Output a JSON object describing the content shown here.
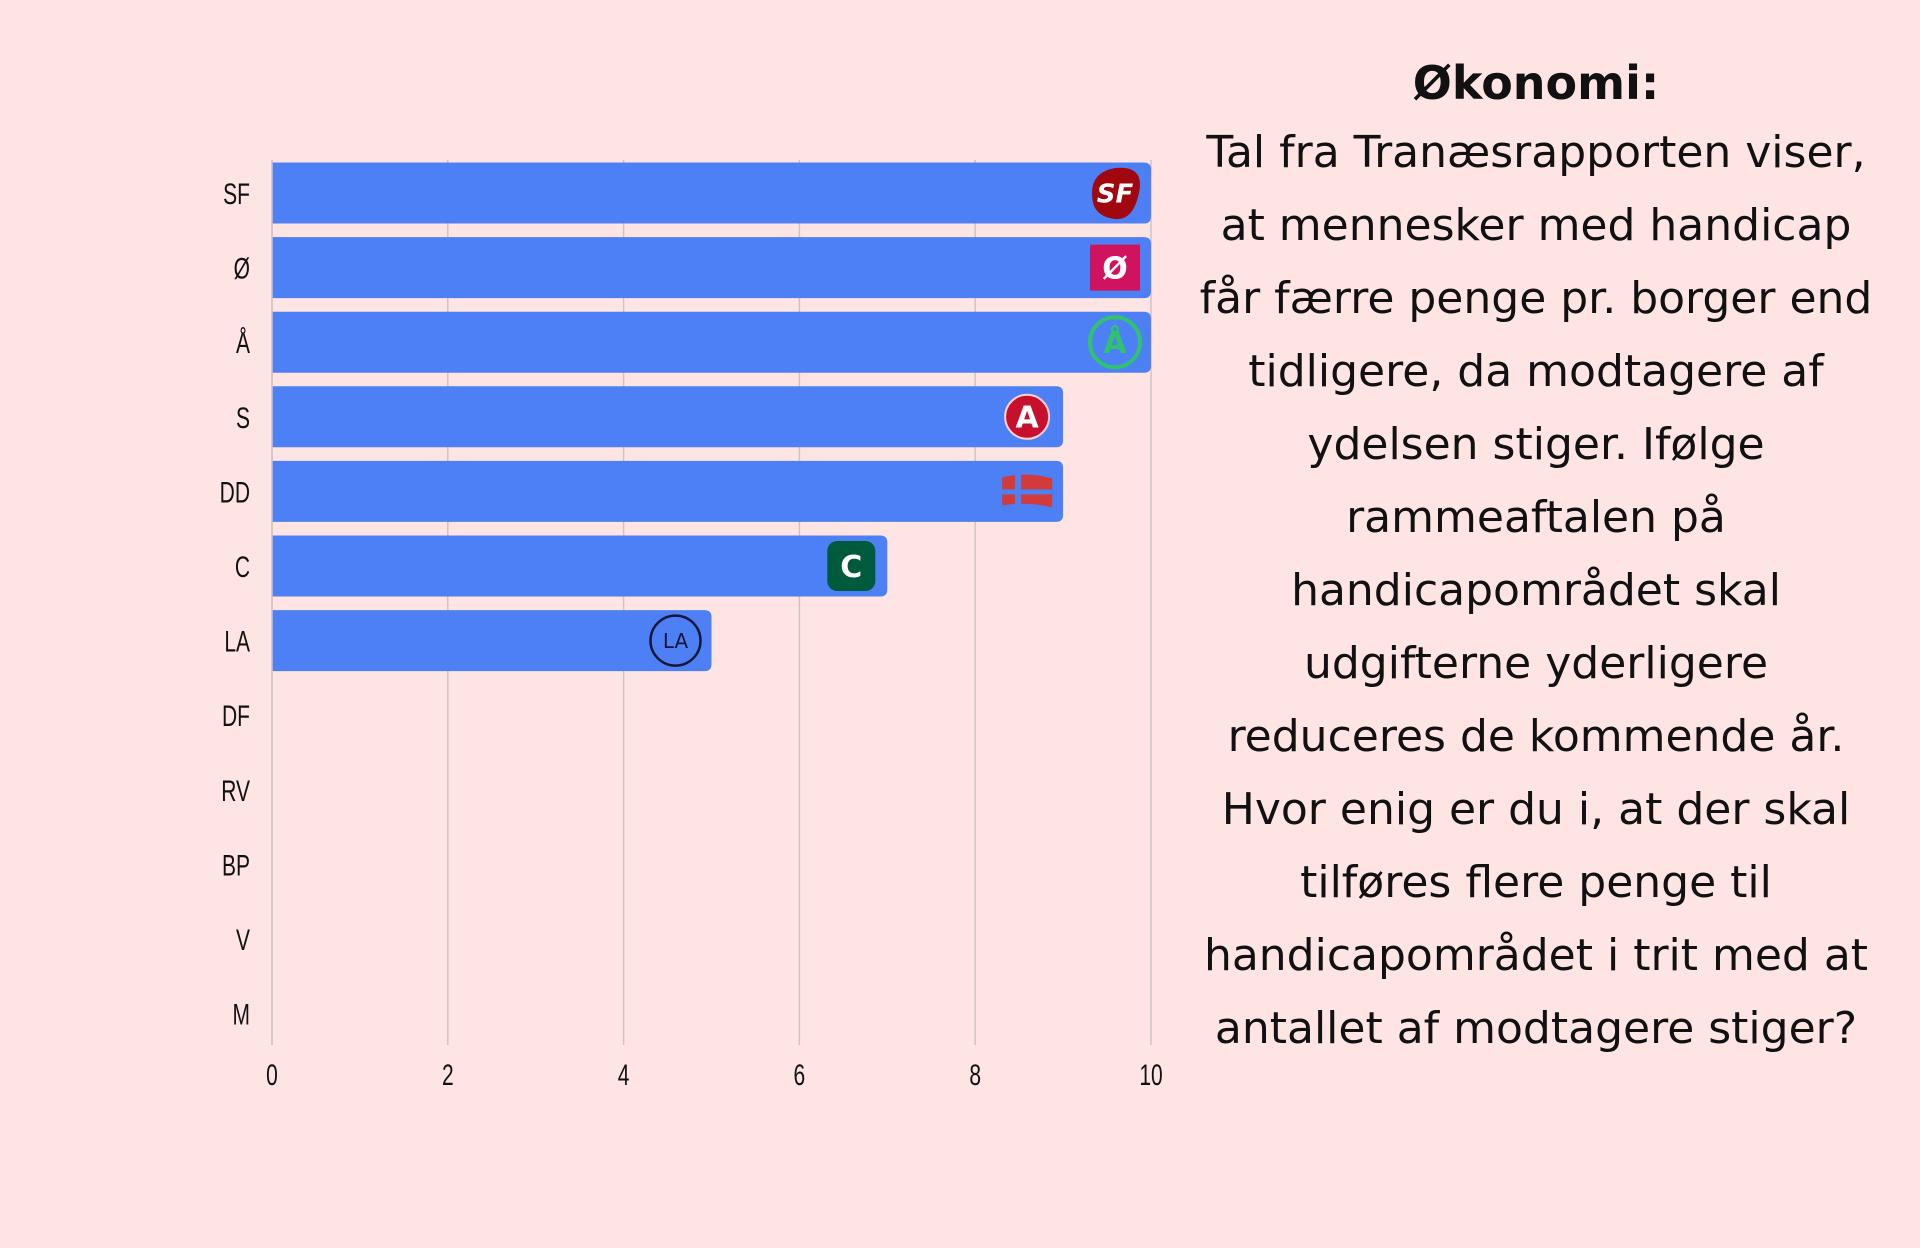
{
  "chart_data": {
    "type": "bar",
    "orientation": "horizontal",
    "categories": [
      "SF",
      "Ø",
      "Å",
      "S",
      "DD",
      "C",
      "LA",
      "DF",
      "RV",
      "BP",
      "V",
      "M"
    ],
    "values": [
      10,
      10,
      10,
      9,
      9,
      7,
      5,
      0,
      0,
      0,
      0,
      0
    ],
    "xlim": [
      0,
      10
    ],
    "xticks": [
      "0",
      "2",
      "4",
      "6",
      "8",
      "10"
    ],
    "grid": true,
    "bar_color": "#4d80f4",
    "party_logos": {
      "SF": {
        "text": "SF",
        "color": "#a0070f"
      },
      "Ø": {
        "text": "Ø",
        "color": "#d0135e"
      },
      "Å": {
        "text": "Å",
        "color": "#2fc46c"
      },
      "S": {
        "text": "A",
        "color": "#c8102e"
      },
      "DD": {
        "text": "",
        "color": "#d33a3a"
      },
      "C": {
        "text": "C",
        "color": "#005a3c"
      },
      "LA": {
        "text": "LA",
        "color": "#12163a"
      }
    }
  },
  "side": {
    "title": "Økonomi:",
    "body": "Tal fra Tranæsrapporten viser, at mennesker med handicap får færre penge pr. borger end tidligere, da modtagere af ydelsen stiger. Ifølge rammeaftalen på handicapområdet skal udgifterne yderligere reduceres de kommende år. Hvor enig er du i, at der skal tilføres flere penge til handicapområdet i trit med at antallet af modtagere stiger?"
  }
}
